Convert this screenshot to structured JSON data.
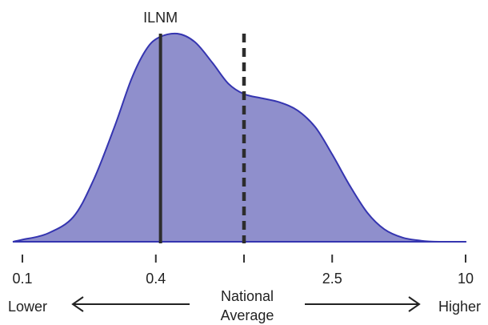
{
  "chart_data": {
    "type": "area",
    "x_scale": "log",
    "xlim": [
      0.1,
      10
    ],
    "x_ticks": [
      {
        "value": 0.1,
        "label": "0.1"
      },
      {
        "value": 0.4,
        "label": "0.4"
      },
      {
        "value": 1.0,
        "label": ""
      },
      {
        "value": 2.5,
        "label": "2.5"
      },
      {
        "value": 10,
        "label": "10"
      }
    ],
    "density": {
      "x": [
        0.1,
        0.13,
        0.17,
        0.21,
        0.26,
        0.31,
        0.36,
        0.41,
        0.5,
        0.6,
        0.72,
        0.85,
        1.0,
        1.2,
        1.45,
        1.75,
        2.1,
        2.5,
        3.0,
        3.6,
        4.3,
        5.2,
        6.3,
        7.6,
        10
      ],
      "y": [
        0.01,
        0.04,
        0.12,
        0.3,
        0.55,
        0.78,
        0.92,
        0.98,
        1.0,
        0.96,
        0.86,
        0.76,
        0.71,
        0.69,
        0.67,
        0.63,
        0.55,
        0.42,
        0.27,
        0.14,
        0.06,
        0.02,
        0.005,
        0.0,
        0.0
      ]
    },
    "markers": [
      {
        "x": 0.42,
        "label": "ILNM",
        "style": "solid"
      },
      {
        "x": 1.0,
        "label": "",
        "style": "dashed"
      }
    ],
    "fill_color": "#8f8fcc",
    "line_color": "#3535b0",
    "marker_color": "#2d2d2d"
  },
  "legend": {
    "lower": "Lower",
    "higher": "Higher",
    "center_line1": "National",
    "center_line2": "Average"
  }
}
